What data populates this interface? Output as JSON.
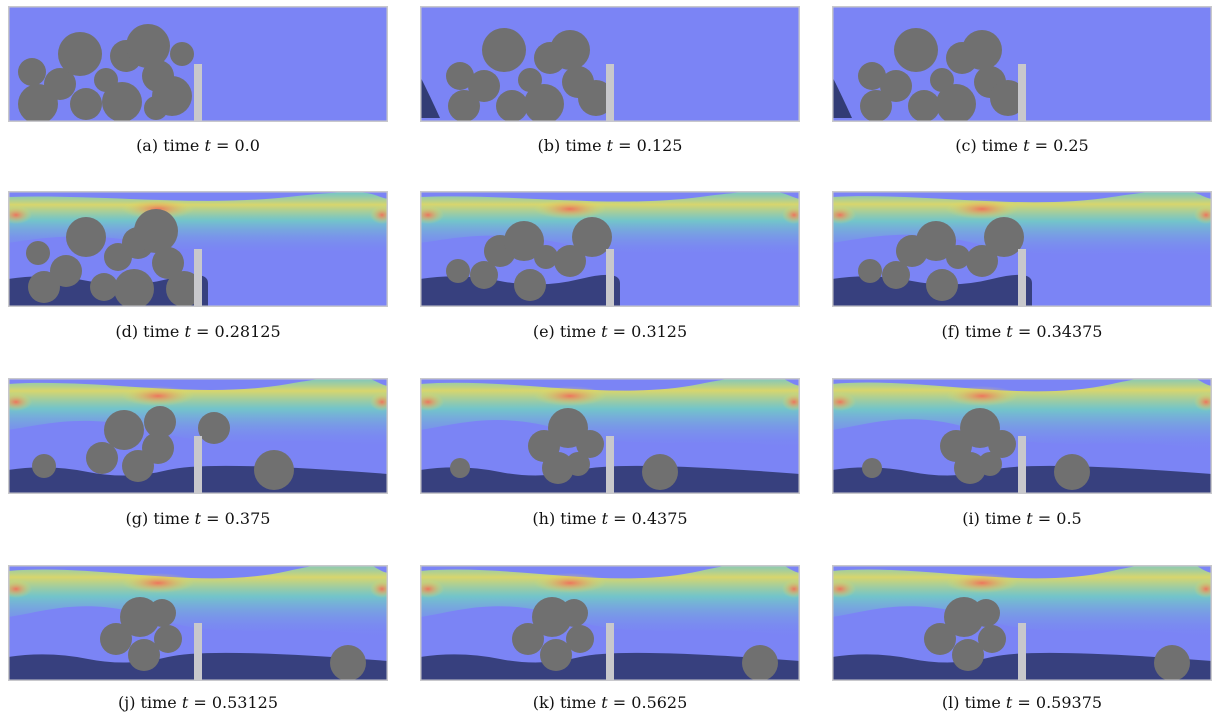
{
  "figure": {
    "panels": [
      {
        "label": "(a)",
        "caption_prefix": "time",
        "time_symbol": "t",
        "time_value": "0.0"
      },
      {
        "label": "(b)",
        "caption_prefix": "time",
        "time_symbol": "t",
        "time_value": "0.125"
      },
      {
        "label": "(c)",
        "caption_prefix": "time",
        "time_symbol": "t",
        "time_value": "0.25"
      },
      {
        "label": "(d)",
        "caption_prefix": "time",
        "time_symbol": "t",
        "time_value": "0.28125"
      },
      {
        "label": "(e)",
        "caption_prefix": "time",
        "time_symbol": "t",
        "time_value": "0.3125"
      },
      {
        "label": "(f)",
        "caption_prefix": "time",
        "time_symbol": "t",
        "time_value": "0.34375"
      },
      {
        "label": "(g)",
        "caption_prefix": "time",
        "time_symbol": "t",
        "time_value": "0.375"
      },
      {
        "label": "(h)",
        "caption_prefix": "time",
        "time_symbol": "t",
        "time_value": "0.4375"
      },
      {
        "label": "(i)",
        "caption_prefix": "time",
        "time_symbol": "t",
        "time_value": "0.5"
      },
      {
        "label": "(j)",
        "caption_prefix": "time",
        "time_symbol": "t",
        "time_value": "0.53125"
      },
      {
        "label": "(k)",
        "caption_prefix": "time",
        "time_symbol": "t",
        "time_value": "0.5625"
      },
      {
        "label": "(l)",
        "caption_prefix": "time",
        "time_symbol": "t",
        "time_value": "0.59375"
      }
    ],
    "colors": {
      "fluid_rest": "#7b84f5",
      "jet_hot": "#f0705a",
      "jet_warm": "#e8e455",
      "jet_mid": "#6fe0b8",
      "particle": "#707070",
      "wall": "#c8c8cc",
      "sediment": "#202a55"
    }
  }
}
